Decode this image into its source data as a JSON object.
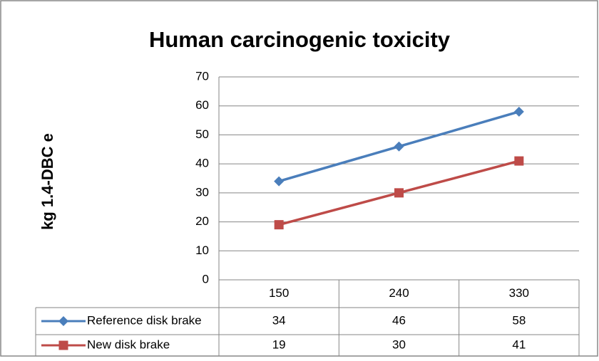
{
  "chart_data": {
    "type": "line",
    "title": "Human carcinogenic toxicity",
    "y_label": "kg 1.4-DBC e",
    "categories": [
      "150",
      "240",
      "330"
    ],
    "series": [
      {
        "name": "Reference disk brake",
        "color": "#4a7ebb",
        "marker": "diamond",
        "values": [
          34,
          46,
          58
        ]
      },
      {
        "name": "New disk brake",
        "color": "#be4b48",
        "marker": "square",
        "values": [
          19,
          30,
          41
        ]
      }
    ],
    "ylim": [
      0,
      70
    ],
    "yticks": [
      0,
      10,
      20,
      30,
      40,
      50,
      60,
      70
    ],
    "grid": true,
    "data_table": true
  }
}
